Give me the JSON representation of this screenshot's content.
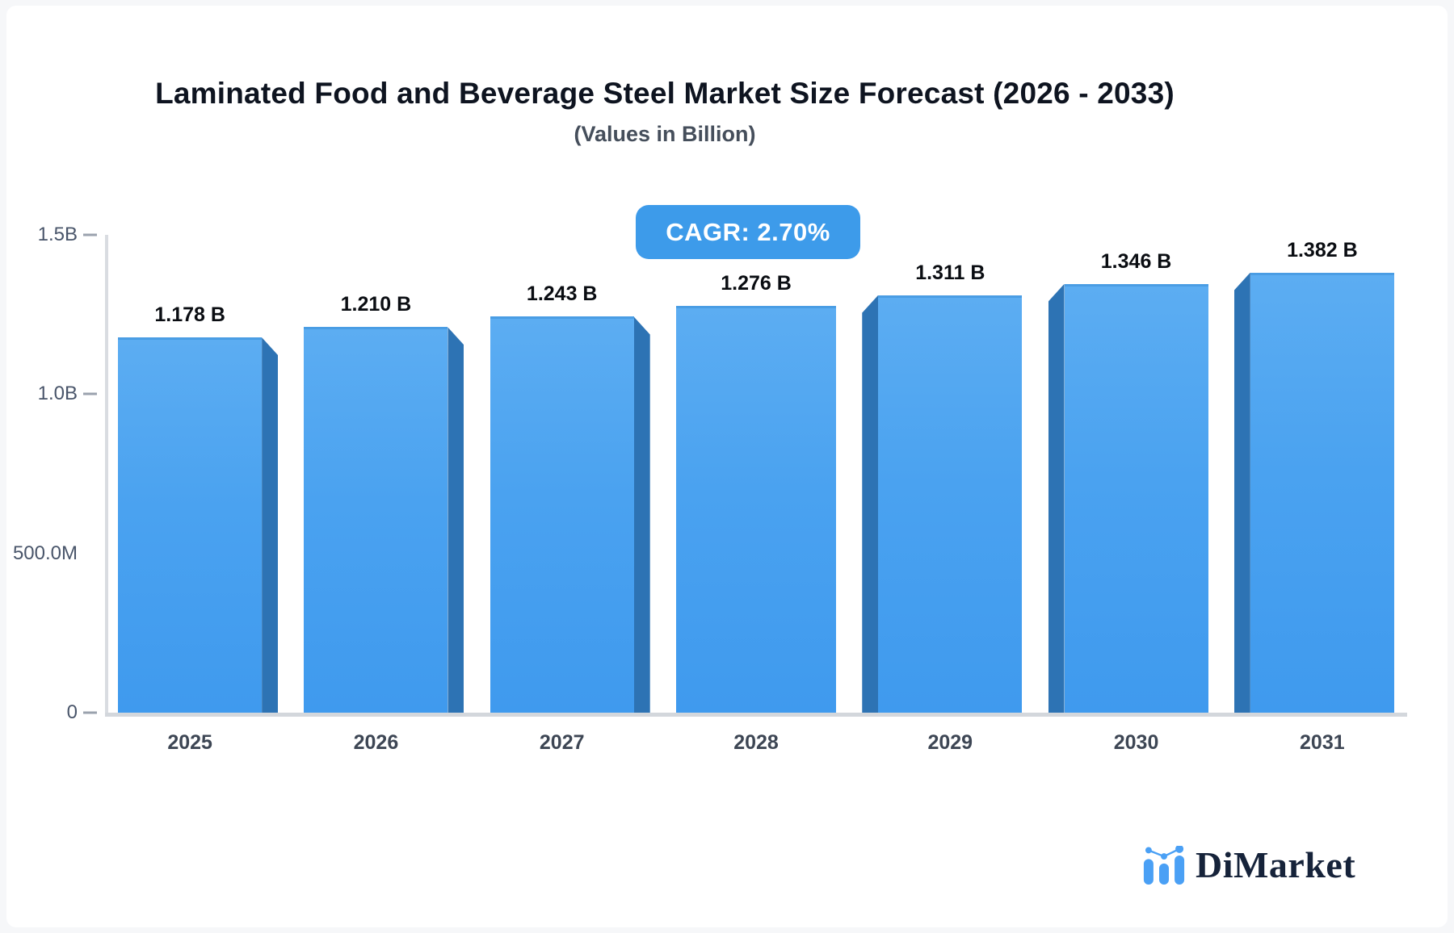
{
  "page": {
    "background": "#f6f7f9",
    "card_background": "#ffffff"
  },
  "header": {
    "title": "Laminated Food and Beverage Steel Market Size Forecast (2026 - 2033)",
    "subtitle": "(Values in Billion)"
  },
  "badge": {
    "label": "CAGR: 2.70%",
    "background": "#3d9bea",
    "text_color": "#ffffff"
  },
  "chart_data": {
    "type": "bar",
    "title": "Laminated Food and Beverage Steel Market Size Forecast (2026 - 2033)",
    "subtitle": "(Values in Billion)",
    "categories": [
      "2025",
      "2026",
      "2027",
      "2028",
      "2029",
      "2030",
      "2031"
    ],
    "values": [
      1.178,
      1.21,
      1.243,
      1.276,
      1.311,
      1.346,
      1.382
    ],
    "value_labels": [
      "1.178 B",
      "1.210 B",
      "1.243 B",
      "1.276 B",
      "1.311 B",
      "1.346 B",
      "1.382 B"
    ],
    "cagr_label": "CAGR: 2.70%",
    "xlabel": "",
    "ylabel": "",
    "ylim": [
      0,
      1.5
    ],
    "yticks": [
      {
        "label": "1.5B",
        "value": 1.5,
        "dash": true
      },
      {
        "label": "1.0B",
        "value": 1.0,
        "dash": true
      },
      {
        "label": "500.0M",
        "value": 0.5,
        "dash": false
      },
      {
        "label": "0",
        "value": 0,
        "dash": true
      }
    ],
    "grid": false,
    "legend": "none",
    "colors": {
      "bar_face_top": "#5cadf2",
      "bar_face_bottom": "#3f9aee",
      "bar_side": "#2d73b4",
      "axis_line": "#d9dce1",
      "baseline": "#d3d7dc"
    }
  },
  "logo": {
    "text": "DiMarket",
    "text_color": "#16233a",
    "icon": "mini-bar-chart-icon",
    "icon_color": "#4aa0f5"
  }
}
